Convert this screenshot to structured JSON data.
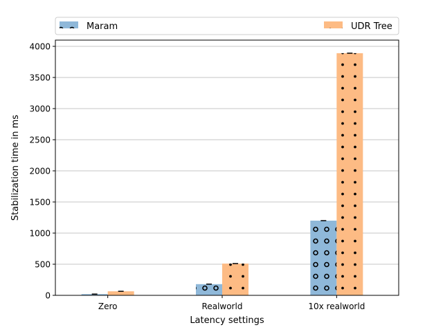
{
  "chart_data": {
    "type": "bar",
    "title": "",
    "xlabel": "Latency settings",
    "ylabel": "Stabilization time in ms",
    "categories": [
      "Zero",
      "Realworld",
      "10x realworld"
    ],
    "series": [
      {
        "name": "Maram",
        "values": [
          20,
          180,
          1200
        ],
        "color": "#8fb8d9",
        "hatch": "circles"
      },
      {
        "name": "UDR Tree",
        "values": [
          65,
          510,
          3890
        ],
        "color": "#fdbb84",
        "hatch": "dots"
      }
    ],
    "ylim": [
      0,
      4100
    ],
    "yticks": [
      0,
      500,
      1000,
      1500,
      2000,
      2500,
      3000,
      3500,
      4000
    ],
    "grid": "y",
    "legend": "top"
  }
}
